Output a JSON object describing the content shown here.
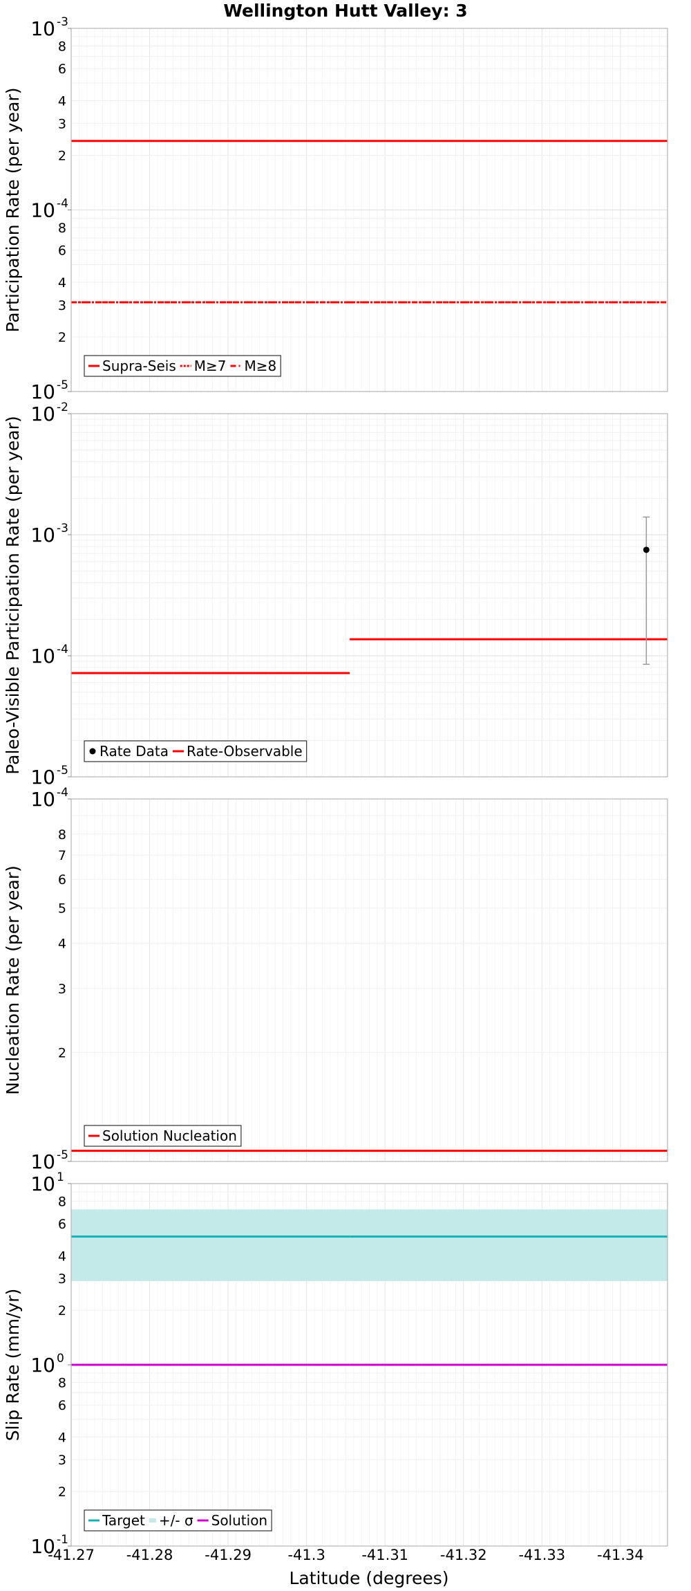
{
  "chart_data": {
    "title": "Wellington Hutt Valley: 3",
    "xlabel": "Latitude (degrees)",
    "x_range": [
      -41.27,
      -41.346
    ],
    "x_ticks": [
      "-41.27",
      "-41.28",
      "-41.29",
      "-41.3",
      "-41.31",
      "-41.32",
      "-41.33",
      "-41.34"
    ],
    "x_tick_values": [
      -41.27,
      -41.28,
      -41.29,
      -41.3,
      -41.31,
      -41.32,
      -41.33,
      -41.34
    ],
    "panels": [
      {
        "type": "line",
        "ylabel": "Participation Rate (per year)",
        "yscale": "log",
        "ylim": [
          1e-05,
          0.001
        ],
        "major_ticks": [
          {
            "value": 1e-05,
            "exp": "-5"
          },
          {
            "value": 0.0001,
            "exp": "-4"
          },
          {
            "value": 0.001,
            "exp": "-3"
          }
        ],
        "minor_labels": [
          2,
          3,
          4,
          6,
          8
        ],
        "series": [
          {
            "name": "Supra-Seis",
            "style": "solid",
            "color": "#ff0000",
            "segments": [
              {
                "x": [
                  -41.27,
                  -41.3055
                ],
                "y": 0.00024
              },
              {
                "x": [
                  -41.3055,
                  -41.346
                ],
                "y": 0.00024
              }
            ]
          },
          {
            "name": "M≥7",
            "style": "dotted",
            "color": "#ff0000",
            "segments": [
              {
                "x": [
                  -41.27,
                  -41.3055
                ],
                "y": 3.1e-05
              },
              {
                "x": [
                  -41.3055,
                  -41.346
                ],
                "y": 3.1e-05
              }
            ]
          },
          {
            "name": "M≥8",
            "style": "dashdot",
            "color": "#ff0000",
            "segments": [
              {
                "x": [
                  -41.27,
                  -41.3055
                ],
                "y": 3.1e-05
              },
              {
                "x": [
                  -41.3055,
                  -41.346
                ],
                "y": 3.1e-05
              }
            ]
          }
        ],
        "legend": {
          "placement": "bottom-left",
          "entries": [
            "Supra-Seis",
            "M≥7",
            "M≥8"
          ]
        }
      },
      {
        "type": "line",
        "ylabel": "Paleo-Visible Participation Rate (per year)",
        "yscale": "log",
        "ylim": [
          1e-05,
          0.01
        ],
        "major_ticks": [
          {
            "value": 1e-05,
            "exp": "-5"
          },
          {
            "value": 0.0001,
            "exp": "-4"
          },
          {
            "value": 0.001,
            "exp": "-3"
          },
          {
            "value": 0.01,
            "exp": "-2"
          }
        ],
        "minor_labels": [],
        "series": [
          {
            "name": "Rate-Observable",
            "style": "solid",
            "color": "#ff0000",
            "segments": [
              {
                "x": [
                  -41.27,
                  -41.3055
                ],
                "y": 7.2e-05
              },
              {
                "x": [
                  -41.3055,
                  -41.346
                ],
                "y": 0.000137
              }
            ]
          }
        ],
        "points": [
          {
            "name": "Rate Data",
            "x": -41.3433,
            "y": 0.00075,
            "err_low": 8.5e-05,
            "err_high": 0.0014
          }
        ],
        "legend": {
          "placement": "bottom-left",
          "entries": [
            "Rate Data",
            "Rate-Observable"
          ]
        }
      },
      {
        "type": "line",
        "ylabel": "Nucleation Rate (per year)",
        "yscale": "log",
        "ylim": [
          1e-05,
          0.0001
        ],
        "major_ticks": [
          {
            "value": 1e-05,
            "exp": "-5"
          },
          {
            "value": 0.0001,
            "exp": "-4"
          }
        ],
        "minor_labels": [
          2,
          3,
          4,
          5,
          6,
          7,
          8
        ],
        "series": [
          {
            "name": "Solution Nucleation",
            "style": "solid",
            "color": "#ff0000",
            "segments": [
              {
                "x": [
                  -41.27,
                  -41.3055
                ],
                "y": 1.07e-05
              },
              {
                "x": [
                  -41.3055,
                  -41.346
                ],
                "y": 1.07e-05
              }
            ]
          }
        ],
        "legend": {
          "placement": "bottom-left",
          "entries": [
            "Solution Nucleation"
          ]
        }
      },
      {
        "type": "line",
        "ylabel": "Slip Rate (mm/yr)",
        "yscale": "log",
        "ylim": [
          0.1,
          10
        ],
        "major_ticks": [
          {
            "value": 0.1,
            "exp": "-1"
          },
          {
            "value": 1,
            "exp": "0"
          },
          {
            "value": 10,
            "exp": "1"
          }
        ],
        "minor_labels": [
          2,
          3,
          4,
          6,
          8
        ],
        "band": {
          "name": "+/- σ",
          "low": 2.9,
          "high": 7.2,
          "color": "#c3eae8"
        },
        "series": [
          {
            "name": "Target",
            "style": "solid",
            "color": "#13b3b3",
            "segments": [
              {
                "x": [
                  -41.27,
                  -41.3055
                ],
                "y": 5.1
              },
              {
                "x": [
                  -41.3055,
                  -41.346
                ],
                "y": 5.1
              }
            ]
          },
          {
            "name": "Solution",
            "style": "solid",
            "color": "#cc00cc",
            "segments": [
              {
                "x": [
                  -41.27,
                  -41.3055
                ],
                "y": 1.0
              },
              {
                "x": [
                  -41.3055,
                  -41.346
                ],
                "y": 1.0
              }
            ]
          }
        ],
        "legend": {
          "placement": "bottom-left",
          "entries": [
            "Target",
            "+/- σ",
            "Solution"
          ]
        }
      }
    ]
  }
}
